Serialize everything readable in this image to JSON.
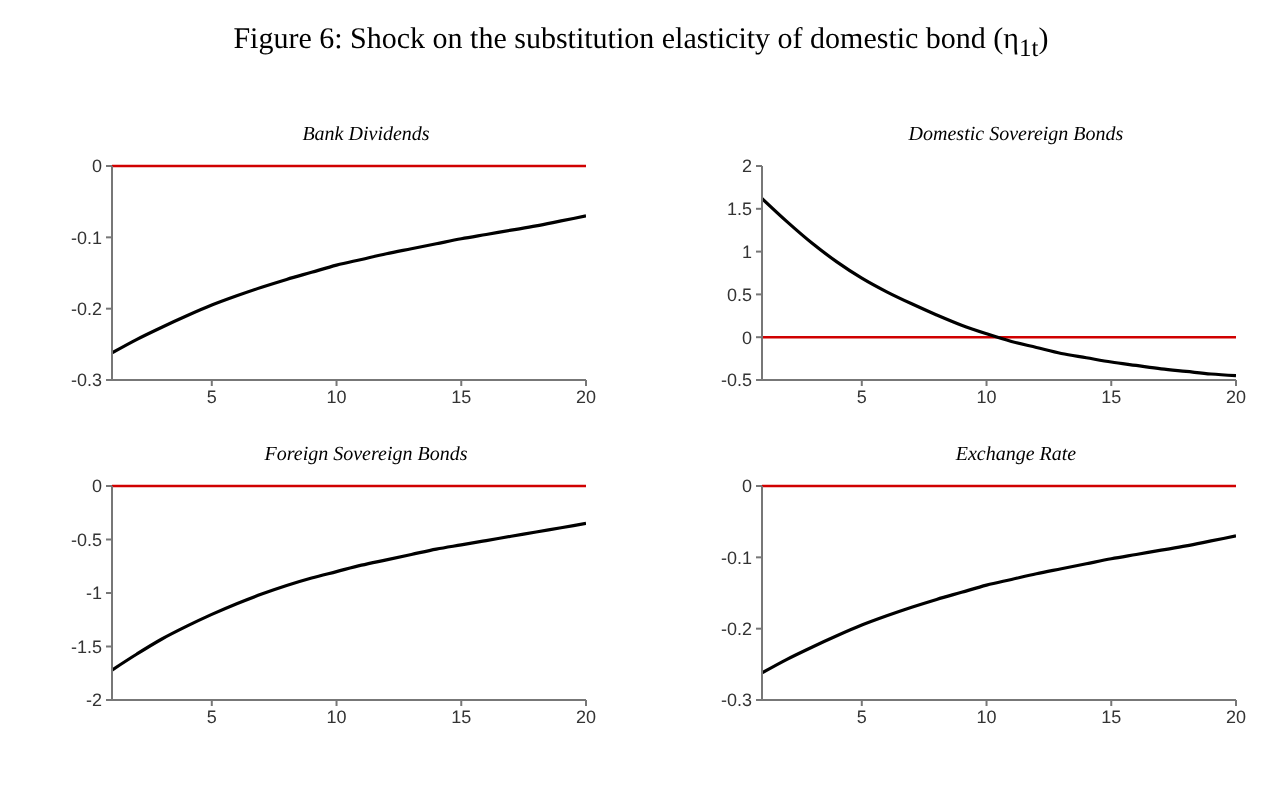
{
  "chart_data": [
    {
      "type": "line",
      "title": "Bank Dividends",
      "annotations": [
        "Figure 6: Shock on the substitution elasticity of domestic bond (η$_{1t}$)"
      ],
      "x": [
        1,
        2,
        3,
        4,
        5,
        6,
        7,
        8,
        9,
        10,
        11,
        12,
        13,
        14,
        15,
        16,
        17,
        18,
        19,
        20
      ],
      "series": [
        {
          "color": "#000000",
          "values": [
            -0.262,
            -0.243,
            -0.226,
            -0.21,
            -0.195,
            -0.182,
            -0.17,
            -0.159,
            -0.149,
            -0.139,
            -0.131,
            -0.123,
            -0.116,
            -0.109,
            -0.102,
            -0.096,
            -0.09,
            -0.084,
            -0.077,
            -0.07
          ]
        }
      ],
      "xlim": [
        1,
        20
      ],
      "xticks": [
        5,
        10,
        15,
        20
      ],
      "ylim": [
        -0.3,
        0
      ],
      "yticks": [
        -0.3,
        -0.2,
        -0.1,
        0
      ],
      "ref_lines": [
        {
          "axis": "y",
          "value": 0,
          "color": "#d00000"
        }
      ],
      "grid": false,
      "legend": false
    },
    {
      "type": "line",
      "title": "Domestic Sovereign Bonds",
      "x": [
        1,
        2,
        3,
        4,
        5,
        6,
        7,
        8,
        9,
        10,
        11,
        12,
        13,
        14,
        15,
        16,
        17,
        18,
        19,
        20
      ],
      "series": [
        {
          "color": "#000000",
          "values": [
            1.62,
            1.35,
            1.1,
            0.88,
            0.69,
            0.53,
            0.39,
            0.26,
            0.14,
            0.04,
            -0.05,
            -0.12,
            -0.19,
            -0.24,
            -0.29,
            -0.33,
            -0.37,
            -0.4,
            -0.43,
            -0.45
          ]
        }
      ],
      "xlim": [
        1,
        20
      ],
      "xticks": [
        5,
        10,
        15,
        20
      ],
      "ylim": [
        -0.5,
        2
      ],
      "yticks": [
        -0.5,
        0,
        0.5,
        1,
        1.5,
        2
      ],
      "ref_lines": [
        {
          "axis": "y",
          "value": 0,
          "color": "#d00000"
        }
      ],
      "grid": false,
      "legend": false
    },
    {
      "type": "line",
      "title": "Foreign Sovereign Bonds",
      "x": [
        1,
        2,
        3,
        4,
        5,
        6,
        7,
        8,
        9,
        10,
        11,
        12,
        13,
        14,
        15,
        16,
        17,
        18,
        19,
        20
      ],
      "series": [
        {
          "color": "#000000",
          "values": [
            -1.72,
            -1.57,
            -1.43,
            -1.31,
            -1.2,
            -1.1,
            -1.01,
            -0.93,
            -0.86,
            -0.8,
            -0.74,
            -0.69,
            -0.64,
            -0.59,
            -0.55,
            -0.51,
            -0.47,
            -0.43,
            -0.39,
            -0.35
          ]
        }
      ],
      "xlim": [
        1,
        20
      ],
      "xticks": [
        5,
        10,
        15,
        20
      ],
      "ylim": [
        -2,
        0
      ],
      "yticks": [
        -2,
        -1.5,
        -1,
        -0.5,
        0
      ],
      "ref_lines": [
        {
          "axis": "y",
          "value": 0,
          "color": "#d00000"
        }
      ],
      "grid": false,
      "legend": false
    },
    {
      "type": "line",
      "title": "Exchange Rate",
      "x": [
        1,
        2,
        3,
        4,
        5,
        6,
        7,
        8,
        9,
        10,
        11,
        12,
        13,
        14,
        15,
        16,
        17,
        18,
        19,
        20
      ],
      "series": [
        {
          "color": "#000000",
          "values": [
            -0.262,
            -0.243,
            -0.226,
            -0.21,
            -0.195,
            -0.182,
            -0.17,
            -0.159,
            -0.149,
            -0.139,
            -0.131,
            -0.123,
            -0.116,
            -0.109,
            -0.102,
            -0.096,
            -0.09,
            -0.084,
            -0.077,
            -0.07
          ]
        }
      ],
      "xlim": [
        1,
        20
      ],
      "xticks": [
        5,
        10,
        15,
        20
      ],
      "ylim": [
        -0.3,
        0
      ],
      "yticks": [
        -0.3,
        -0.2,
        -0.1,
        0
      ],
      "ref_lines": [
        {
          "axis": "y",
          "value": 0,
          "color": "#d00000"
        }
      ],
      "grid": false,
      "legend": false
    }
  ]
}
